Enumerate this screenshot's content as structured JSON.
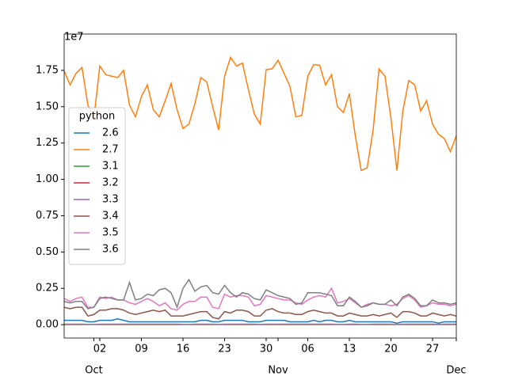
{
  "chart_data": {
    "type": "line",
    "y_offset_label": "1e7",
    "legend_title": "python",
    "legend": "center left",
    "x": [
      "09-26",
      "09-27",
      "09-28",
      "09-29",
      "09-30",
      "10-01",
      "10-02",
      "10-03",
      "10-04",
      "10-05",
      "10-06",
      "10-07",
      "10-08",
      "10-09",
      "10-10",
      "10-11",
      "10-12",
      "10-13",
      "10-14",
      "10-15",
      "10-16",
      "10-17",
      "10-18",
      "10-19",
      "10-20",
      "10-21",
      "10-22",
      "10-23",
      "10-24",
      "10-25",
      "10-26",
      "10-27",
      "10-28",
      "10-29",
      "10-30",
      "10-31",
      "11-01",
      "11-02",
      "11-03",
      "11-04",
      "11-05",
      "11-06",
      "11-07",
      "11-08",
      "11-09",
      "11-10",
      "11-11",
      "11-12",
      "11-13",
      "11-14",
      "11-15",
      "11-16",
      "11-17",
      "11-18",
      "11-19",
      "11-20",
      "11-21",
      "11-22",
      "11-23",
      "11-24",
      "11-25",
      "11-26",
      "11-27",
      "11-28",
      "11-29",
      "11-30",
      "12-01"
    ],
    "xlim": [
      "09-26",
      "12-01"
    ],
    "xticks": [
      {
        "value": "10-02",
        "label": "02"
      },
      {
        "value": "10-09",
        "label": "09"
      },
      {
        "value": "10-16",
        "label": "16"
      },
      {
        "value": "10-23",
        "label": "23"
      },
      {
        "value": "10-30",
        "label": "30"
      },
      {
        "value": "11-06",
        "label": "06"
      },
      {
        "value": "11-13",
        "label": "13"
      },
      {
        "value": "11-20",
        "label": "20"
      },
      {
        "value": "11-27",
        "label": "27"
      }
    ],
    "xmajorticks": [
      {
        "value": "10-01",
        "label": "Oct"
      },
      {
        "value": "11-01",
        "label": "Nov"
      },
      {
        "value": "12-01",
        "label": "Dec"
      }
    ],
    "ylim": [
      -920000,
      20000000
    ],
    "yticks": [
      {
        "value": 0,
        "label": "0.00"
      },
      {
        "value": 2500000,
        "label": "0.25"
      },
      {
        "value": 5000000,
        "label": "0.50"
      },
      {
        "value": 7500000,
        "label": "0.75"
      },
      {
        "value": 10000000,
        "label": "1.00"
      },
      {
        "value": 12500000,
        "label": "1.25"
      },
      {
        "value": 15000000,
        "label": "1.50"
      },
      {
        "value": 17500000,
        "label": "1.75"
      }
    ],
    "series": [
      {
        "name": "2.6",
        "color": "#1f77b4",
        "values": [
          300000,
          300000,
          300000,
          300000,
          200000,
          200000,
          300000,
          300000,
          300000,
          400000,
          300000,
          200000,
          200000,
          200000,
          200000,
          200000,
          200000,
          200000,
          200000,
          200000,
          200000,
          200000,
          200000,
          300000,
          300000,
          200000,
          200000,
          300000,
          300000,
          300000,
          300000,
          200000,
          200000,
          200000,
          300000,
          300000,
          300000,
          300000,
          200000,
          200000,
          200000,
          200000,
          300000,
          200000,
          300000,
          300000,
          200000,
          200000,
          300000,
          200000,
          200000,
          200000,
          200000,
          200000,
          200000,
          200000,
          100000,
          200000,
          200000,
          200000,
          200000,
          200000,
          200000,
          100000,
          200000,
          200000,
          200000
        ]
      },
      {
        "name": "2.7",
        "color": "#ff7f0e",
        "values": [
          17450000,
          16500000,
          17300000,
          17700000,
          15100000,
          14200000,
          17800000,
          17200000,
          17100000,
          17000000,
          17500000,
          15100000,
          14300000,
          15700000,
          16500000,
          14800000,
          14300000,
          15400000,
          16600000,
          14800000,
          13500000,
          13800000,
          15200000,
          17000000,
          16700000,
          15000000,
          13400000,
          17100000,
          18400000,
          17800000,
          18000000,
          16200000,
          14500000,
          13800000,
          17550000,
          17600000,
          18200000,
          17300000,
          16400000,
          14300000,
          14400000,
          17100000,
          17900000,
          17850000,
          16500000,
          17200000,
          15000000,
          14600000,
          15900000,
          13000000,
          10600000,
          10800000,
          13400000,
          17600000,
          17100000,
          14200000,
          10600000,
          14700000,
          16800000,
          16500000,
          14700000,
          15400000,
          13800000,
          13100000,
          12800000,
          11900000,
          13000000
        ]
      },
      {
        "name": "3.1",
        "color": "#2ca02c",
        "values": [
          10000,
          10000,
          10000,
          10000,
          10000,
          10000,
          10000,
          10000,
          10000,
          10000,
          10000,
          10000,
          10000,
          10000,
          10000,
          10000,
          10000,
          10000,
          10000,
          10000,
          10000,
          10000,
          10000,
          10000,
          10000,
          10000,
          10000,
          10000,
          10000,
          10000,
          10000,
          10000,
          10000,
          10000,
          10000,
          10000,
          10000,
          10000,
          10000,
          10000,
          10000,
          10000,
          10000,
          10000,
          10000,
          10000,
          10000,
          10000,
          10000,
          10000,
          10000,
          10000,
          10000,
          10000,
          10000,
          10000,
          10000,
          10000,
          10000,
          10000,
          10000,
          10000,
          10000,
          10000,
          10000,
          10000,
          10000
        ]
      },
      {
        "name": "3.2",
        "color": "#d62728",
        "values": [
          20000,
          20000,
          20000,
          20000,
          20000,
          20000,
          20000,
          20000,
          20000,
          20000,
          20000,
          20000,
          20000,
          20000,
          20000,
          20000,
          20000,
          20000,
          20000,
          20000,
          20000,
          20000,
          20000,
          20000,
          20000,
          20000,
          20000,
          20000,
          20000,
          20000,
          20000,
          20000,
          20000,
          20000,
          20000,
          20000,
          20000,
          20000,
          20000,
          20000,
          20000,
          20000,
          20000,
          20000,
          20000,
          20000,
          20000,
          20000,
          20000,
          20000,
          20000,
          20000,
          20000,
          20000,
          20000,
          20000,
          20000,
          20000,
          20000,
          20000,
          20000,
          20000,
          20000,
          20000,
          20000,
          20000,
          20000
        ]
      },
      {
        "name": "3.3",
        "color": "#9467bd",
        "values": [
          30000,
          30000,
          30000,
          30000,
          20000,
          20000,
          30000,
          30000,
          30000,
          30000,
          30000,
          30000,
          30000,
          30000,
          30000,
          30000,
          30000,
          30000,
          30000,
          30000,
          20000,
          20000,
          30000,
          30000,
          30000,
          30000,
          20000,
          30000,
          30000,
          30000,
          30000,
          30000,
          30000,
          20000,
          30000,
          30000,
          30000,
          30000,
          30000,
          30000,
          30000,
          30000,
          30000,
          30000,
          30000,
          30000,
          20000,
          20000,
          30000,
          30000,
          20000,
          20000,
          30000,
          30000,
          30000,
          30000,
          20000,
          30000,
          30000,
          30000,
          30000,
          30000,
          30000,
          20000,
          30000,
          30000,
          30000
        ]
      },
      {
        "name": "3.4",
        "color": "#8c564b",
        "values": [
          1200000,
          1100000,
          1200000,
          1200000,
          600000,
          700000,
          1000000,
          1000000,
          1100000,
          1100000,
          1000000,
          800000,
          700000,
          800000,
          900000,
          1000000,
          900000,
          1000000,
          600000,
          600000,
          600000,
          700000,
          800000,
          900000,
          900000,
          500000,
          400000,
          900000,
          800000,
          1000000,
          1000000,
          900000,
          600000,
          600000,
          1000000,
          1100000,
          900000,
          800000,
          800000,
          700000,
          700000,
          900000,
          1000000,
          900000,
          800000,
          800000,
          600000,
          600000,
          800000,
          700000,
          600000,
          600000,
          700000,
          600000,
          700000,
          800000,
          500000,
          900000,
          900000,
          800000,
          600000,
          600000,
          800000,
          700000,
          600000,
          700000,
          600000
        ]
      },
      {
        "name": "3.5",
        "color": "#e377c2",
        "values": [
          1800000,
          1600000,
          1800000,
          1900000,
          1200000,
          1200000,
          1900000,
          1800000,
          1900000,
          1700000,
          1700000,
          1500000,
          1400000,
          1600000,
          1800000,
          1600000,
          1300000,
          1500000,
          1100000,
          1000000,
          1400000,
          1600000,
          1600000,
          1900000,
          1900000,
          1200000,
          1100000,
          2100000,
          1900000,
          2000000,
          2000000,
          1900000,
          1300000,
          1400000,
          2000000,
          1900000,
          1800000,
          1700000,
          1700000,
          1500000,
          1400000,
          1700000,
          1900000,
          2000000,
          1900000,
          2500000,
          1500000,
          1600000,
          1800000,
          1500000,
          1200000,
          1400000,
          1500000,
          1400000,
          1400000,
          1300000,
          1400000,
          1800000,
          2000000,
          1700000,
          1200000,
          1300000,
          1500000,
          1400000,
          1400000,
          1300000,
          1400000
        ]
      },
      {
        "name": "3.6",
        "color": "#7f7f7f",
        "values": [
          1600000,
          1500000,
          1600000,
          1600000,
          1100000,
          1200000,
          1800000,
          1900000,
          1800000,
          1700000,
          1700000,
          2900000,
          1700000,
          1800000,
          2100000,
          2000000,
          2400000,
          2500000,
          2200000,
          1200000,
          2500000,
          3100000,
          2300000,
          2600000,
          2700000,
          2200000,
          2100000,
          2700000,
          2200000,
          1900000,
          2200000,
          2100000,
          1800000,
          1700000,
          2400000,
          2200000,
          2000000,
          1900000,
          1800000,
          1400000,
          1500000,
          2200000,
          2200000,
          2200000,
          2100000,
          2000000,
          1300000,
          1300000,
          1900000,
          1600000,
          1200000,
          1300000,
          1500000,
          1400000,
          1400000,
          1700000,
          1300000,
          1900000,
          2100000,
          1800000,
          1300000,
          1300000,
          1700000,
          1500000,
          1500000,
          1400000,
          1500000
        ]
      }
    ]
  }
}
